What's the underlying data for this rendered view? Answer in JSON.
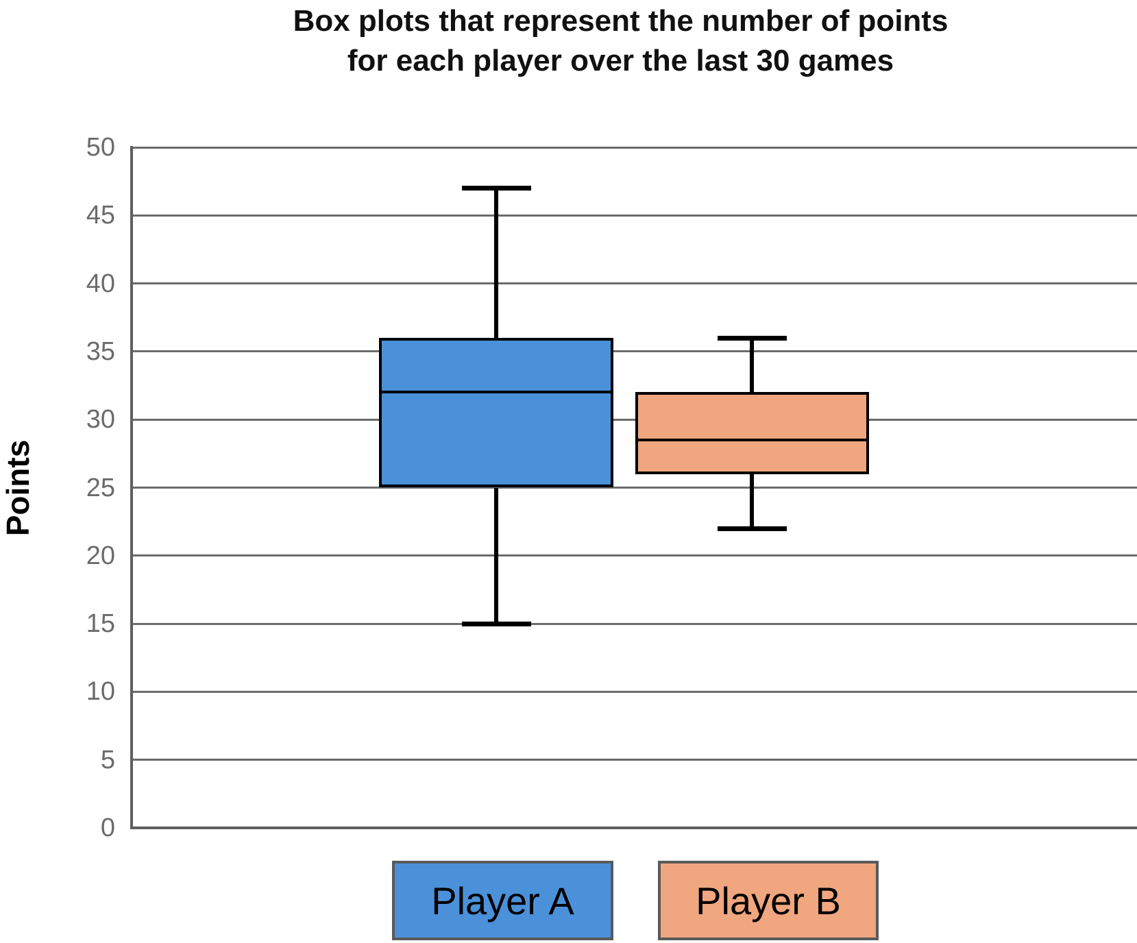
{
  "chart_data": {
    "type": "box",
    "title": "Box plots that represent the number of points for each player over the last 30 games",
    "title_line1": "Box plots that represent the number of points",
    "title_line2": "for each player over the last 30 games",
    "ylabel": "Points",
    "xlabel": "",
    "ylim": [
      0,
      50
    ],
    "ytick_step": 5,
    "yticks": [
      0,
      5,
      10,
      15,
      20,
      25,
      30,
      35,
      40,
      45,
      50
    ],
    "grid": true,
    "legend_position": "bottom",
    "series": [
      {
        "name": "Player A",
        "color": "#4B91DA",
        "min": 15,
        "q1": 25,
        "median": 32,
        "q3": 36,
        "max": 47
      },
      {
        "name": "Player B",
        "color": "#F0A67E",
        "min": 22,
        "q1": 26,
        "median": 28.5,
        "q3": 32,
        "max": 36
      }
    ],
    "colors": {
      "gridline": "#6B6B6B",
      "axis": "#5F5F5F",
      "tick_label": "#6B6B6B",
      "box_outline": "#000000",
      "title_text": "#111111",
      "legend_border": "#5A5A5A",
      "legend_text": "#000000"
    }
  }
}
